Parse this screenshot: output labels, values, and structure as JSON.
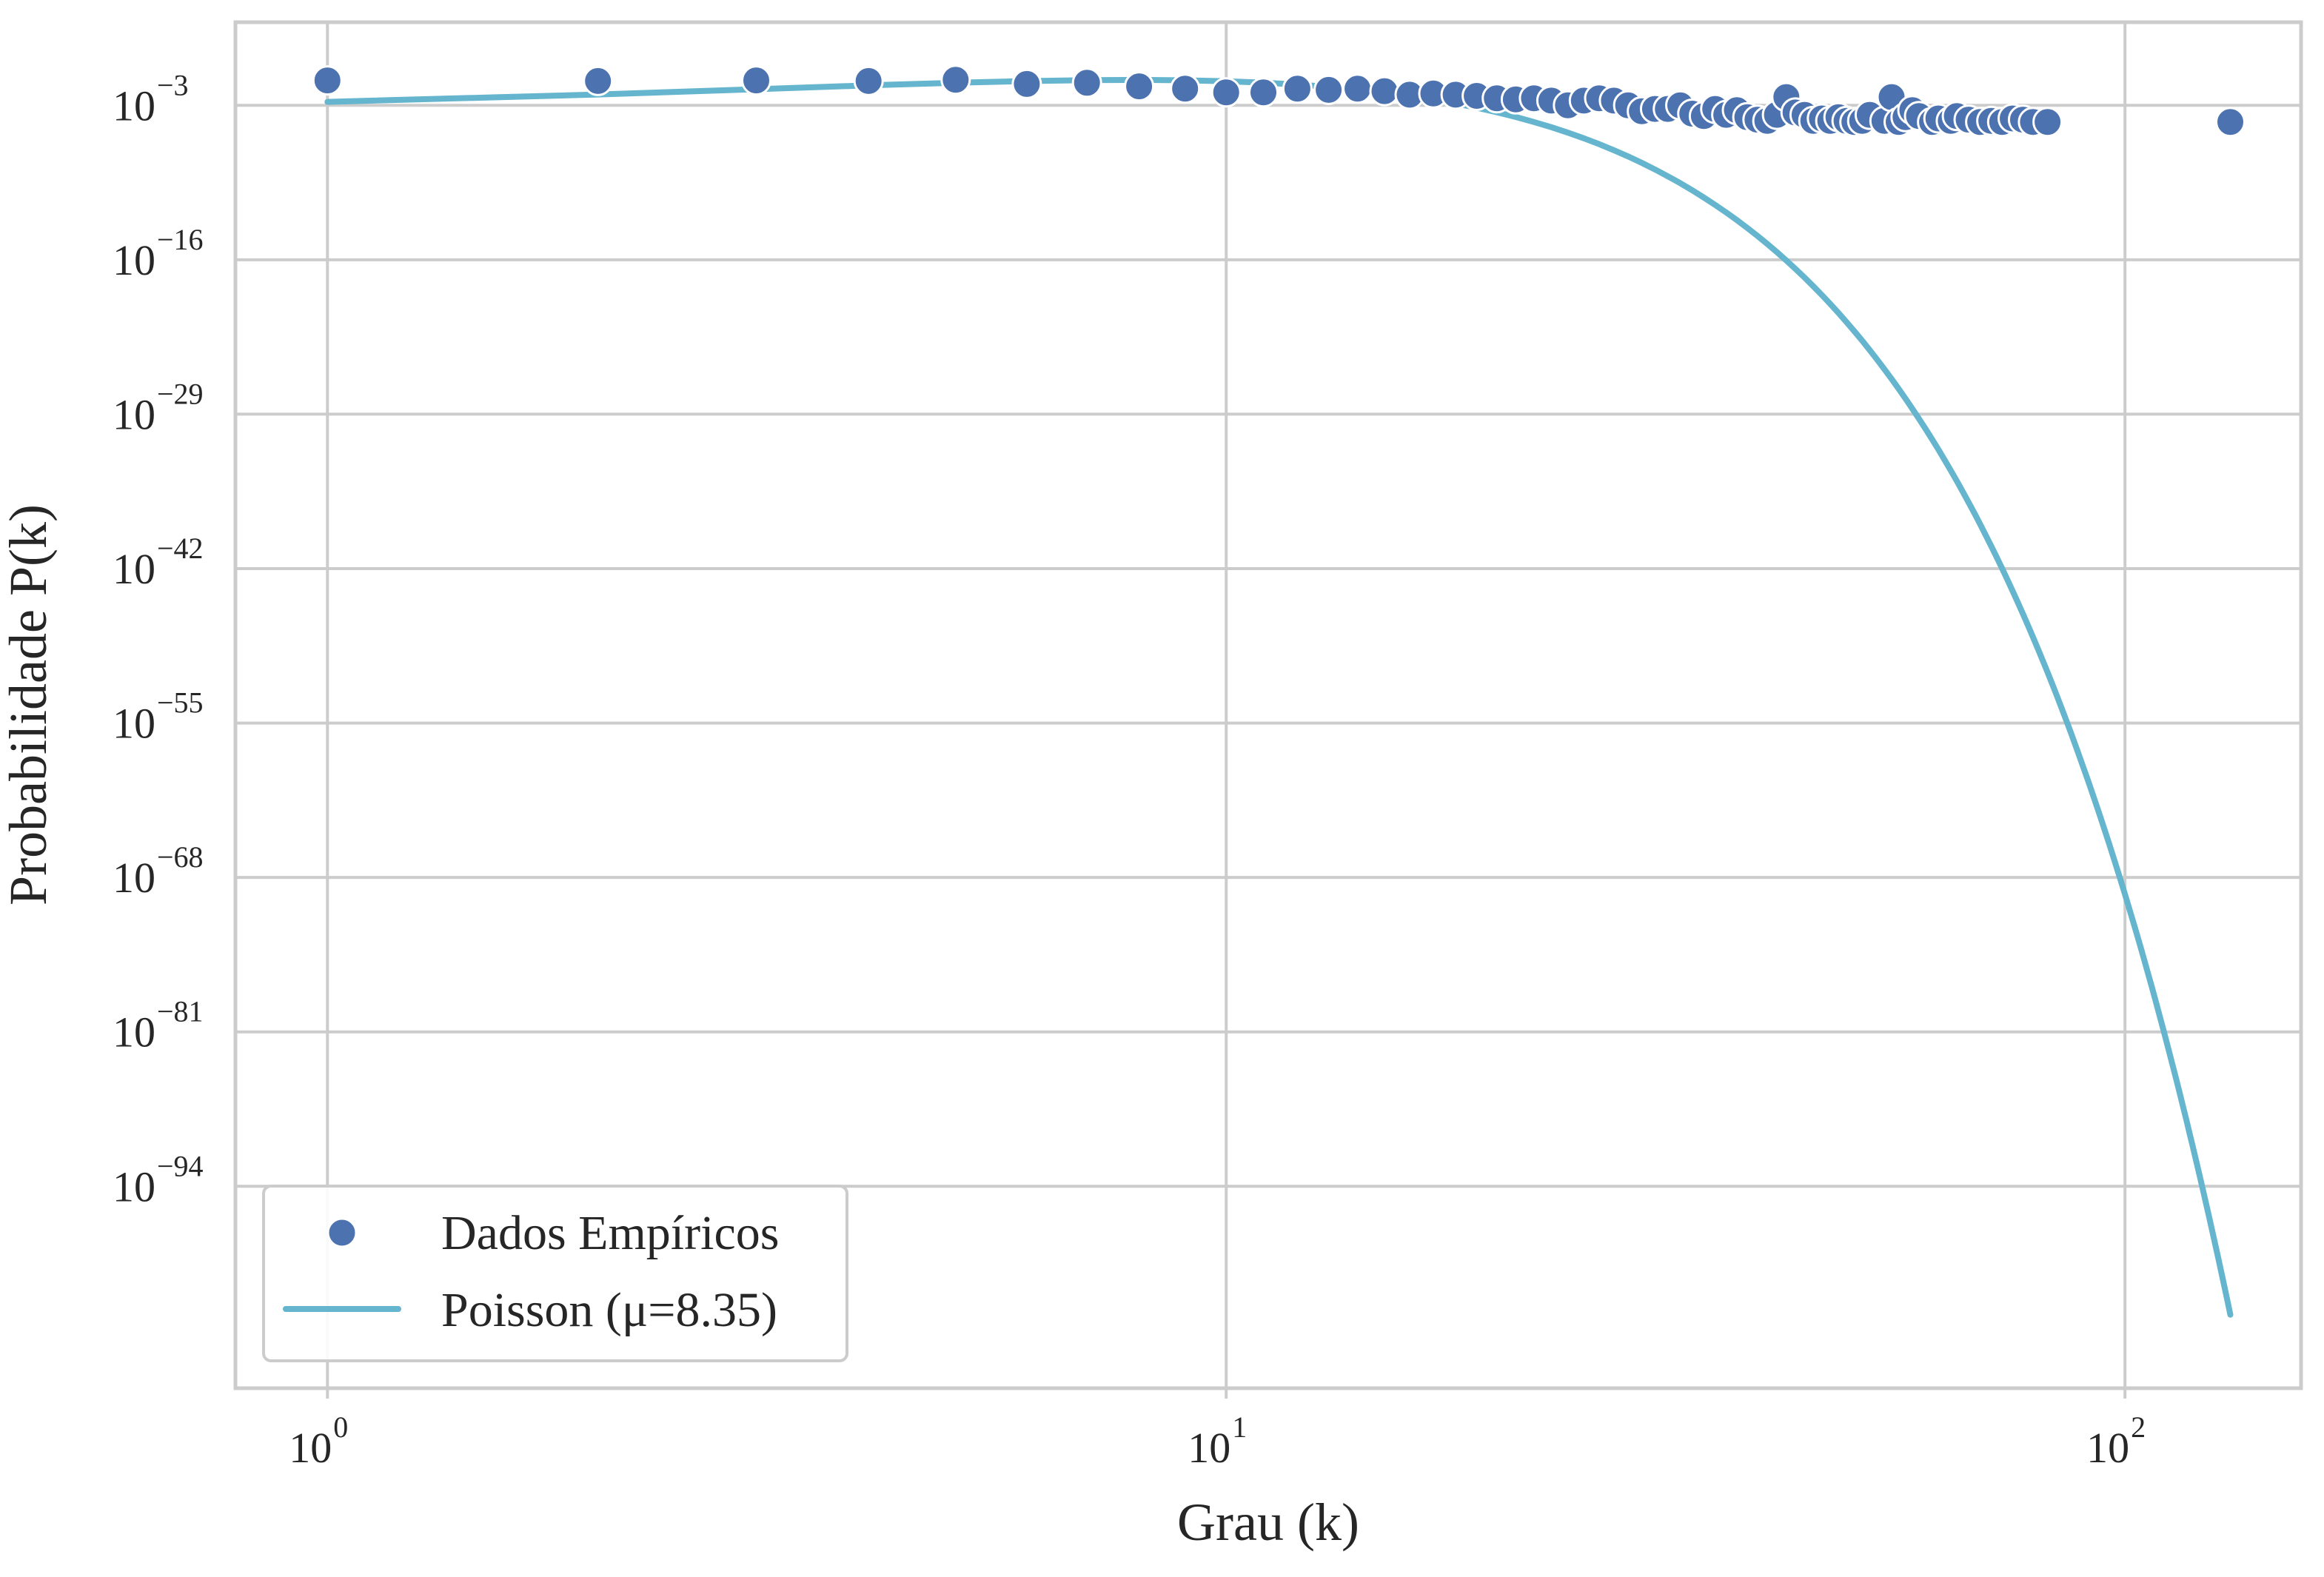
{
  "chart_data": {
    "type": "scatter",
    "title": "",
    "xlabel": "Grau (k)",
    "ylabel": "Probabilidade P(k)",
    "xscale": "log",
    "yscale": "log",
    "xlim": [
      0.79,
      157
    ],
    "ylim_log10": [
      -111.0,
      4.0
    ],
    "grid": true,
    "legend_position": "lower-left",
    "x_ticks": [
      {
        "base": "10",
        "exp": "0",
        "value": 1
      },
      {
        "base": "10",
        "exp": "1",
        "value": 10
      },
      {
        "base": "10",
        "exp": "2",
        "value": 100
      }
    ],
    "y_ticks": [
      {
        "base": "10",
        "exp": "−3",
        "log10": -3
      },
      {
        "base": "10",
        "exp": "−16",
        "log10": -16
      },
      {
        "base": "10",
        "exp": "−29",
        "log10": -29
      },
      {
        "base": "10",
        "exp": "−42",
        "log10": -42
      },
      {
        "base": "10",
        "exp": "−55",
        "log10": -55
      },
      {
        "base": "10",
        "exp": "−68",
        "log10": -68
      },
      {
        "base": "10",
        "exp": "−81",
        "log10": -81
      },
      {
        "base": "10",
        "exp": "−94",
        "log10": -94
      }
    ],
    "series": [
      {
        "name": "Dados Empíricos",
        "kind": "scatter",
        "color": "#4c72b0",
        "points": [
          {
            "x": 1,
            "log10y": -0.9
          },
          {
            "x": 2,
            "log10y": -0.95
          },
          {
            "x": 3,
            "log10y": -0.9
          },
          {
            "x": 4,
            "log10y": -0.95
          },
          {
            "x": 5,
            "log10y": -0.85
          },
          {
            "x": 6,
            "log10y": -1.2
          },
          {
            "x": 7,
            "log10y": -1.1
          },
          {
            "x": 8,
            "log10y": -1.4
          },
          {
            "x": 9,
            "log10y": -1.6
          },
          {
            "x": 10,
            "log10y": -1.9
          },
          {
            "x": 11,
            "log10y": -1.9
          },
          {
            "x": 12,
            "log10y": -1.6
          },
          {
            "x": 13,
            "log10y": -1.7
          },
          {
            "x": 14,
            "log10y": -1.6
          },
          {
            "x": 15,
            "log10y": -1.8
          },
          {
            "x": 16,
            "log10y": -2.1
          },
          {
            "x": 17,
            "log10y": -2.0
          },
          {
            "x": 18,
            "log10y": -2.1
          },
          {
            "x": 19,
            "log10y": -2.2
          },
          {
            "x": 20,
            "log10y": -2.4
          },
          {
            "x": 21,
            "log10y": -2.5
          },
          {
            "x": 22,
            "log10y": -2.4
          },
          {
            "x": 23,
            "log10y": -2.6
          },
          {
            "x": 24,
            "log10y": -3.0
          },
          {
            "x": 25,
            "log10y": -2.6
          },
          {
            "x": 26,
            "log10y": -2.4
          },
          {
            "x": 27,
            "log10y": -2.6
          },
          {
            "x": 28,
            "log10y": -3.0
          },
          {
            "x": 29,
            "log10y": -3.5
          },
          {
            "x": 30,
            "log10y": -3.3
          },
          {
            "x": 31,
            "log10y": -3.3
          },
          {
            "x": 32,
            "log10y": -3.0
          },
          {
            "x": 33,
            "log10y": -3.7
          },
          {
            "x": 34,
            "log10y": -3.9
          },
          {
            "x": 35,
            "log10y": -3.3
          },
          {
            "x": 36,
            "log10y": -3.8
          },
          {
            "x": 37,
            "log10y": -3.4
          },
          {
            "x": 38,
            "log10y": -4.0
          },
          {
            "x": 39,
            "log10y": -4.2
          },
          {
            "x": 40,
            "log10y": -4.3
          },
          {
            "x": 41,
            "log10y": -3.8
          },
          {
            "x": 42,
            "log10y": -2.3
          },
          {
            "x": 43,
            "log10y": -3.6
          },
          {
            "x": 44,
            "log10y": -3.8
          },
          {
            "x": 45,
            "log10y": -4.3
          },
          {
            "x": 46,
            "log10y": -4.1
          },
          {
            "x": 47,
            "log10y": -4.3
          },
          {
            "x": 48,
            "log10y": -4.0
          },
          {
            "x": 49,
            "log10y": -4.3
          },
          {
            "x": 50,
            "log10y": -4.4
          },
          {
            "x": 51,
            "log10y": -4.3
          },
          {
            "x": 52,
            "log10y": -3.8
          },
          {
            "x": 54,
            "log10y": -4.3
          },
          {
            "x": 55,
            "log10y": -2.3
          },
          {
            "x": 56,
            "log10y": -4.4
          },
          {
            "x": 57,
            "log10y": -4.0
          },
          {
            "x": 58,
            "log10y": -3.4
          },
          {
            "x": 59,
            "log10y": -3.9
          },
          {
            "x": 61,
            "log10y": -4.4
          },
          {
            "x": 62,
            "log10y": -4.1
          },
          {
            "x": 64,
            "log10y": -4.3
          },
          {
            "x": 65,
            "log10y": -3.9
          },
          {
            "x": 67,
            "log10y": -4.2
          },
          {
            "x": 69,
            "log10y": -4.4
          },
          {
            "x": 71,
            "log10y": -4.3
          },
          {
            "x": 73,
            "log10y": -4.4
          },
          {
            "x": 75,
            "log10y": -4.1
          },
          {
            "x": 77,
            "log10y": -4.2
          },
          {
            "x": 79,
            "log10y": -4.4
          },
          {
            "x": 82,
            "log10y": -4.4
          },
          {
            "x": 131,
            "log10y": -4.4
          }
        ]
      },
      {
        "name": "Poisson (μ=8.35)",
        "kind": "line",
        "color": "#64b5cd",
        "mu": 8.35,
        "k_min": 1,
        "k_max": 131
      }
    ]
  }
}
